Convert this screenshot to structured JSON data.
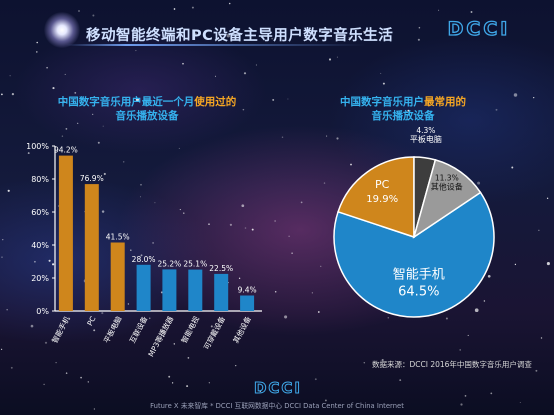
{
  "header": {
    "title": "移动智能终端和PC设备主导用户数字音乐生活",
    "logo_text": "DCCI"
  },
  "bar_panel": {
    "title_part1": "中国数字音乐用户最近一个月",
    "title_highlight": "使用过的",
    "title_part2": "音乐播放设备"
  },
  "pie_panel": {
    "title_part1": "中国数字音乐用户",
    "title_highlight": "最常用的",
    "title_part2": "音乐播放设备"
  },
  "footer": {
    "source": "数据来源：DCCI 2016年中国数字音乐用户调查",
    "logo_text": "DCCI",
    "credit": "Future X 未来智库 * DCCI 互联网数据中心 DCCI Data Center of China Internet"
  },
  "colors": {
    "bar_orange": "#cf861c",
    "bar_blue": "#1f86c9",
    "pie_smartphone": "#1f86c9",
    "pie_pc": "#cf861c",
    "pie_tablet": "#3d3d3d",
    "pie_other": "#9a9a9a",
    "title_blue": "#35b2ee",
    "highlight_orange": "#f5a623"
  },
  "chart_data": [
    {
      "type": "bar",
      "categories": [
        "智能手机",
        "PC",
        "平板电脑",
        "互联设备",
        "MP3等播放器",
        "智能电视",
        "可穿戴设备",
        "其他设备"
      ],
      "values": [
        94.2,
        76.9,
        41.5,
        28.0,
        25.2,
        25.1,
        22.5,
        9.4
      ],
      "value_labels": [
        "94.2%",
        "76.9%",
        "41.5%",
        "28.0%",
        "25.2%",
        "25.1%",
        "22.5%",
        "9.4%"
      ],
      "bar_colors": [
        "#cf861c",
        "#cf861c",
        "#cf861c",
        "#1f86c9",
        "#1f86c9",
        "#1f86c9",
        "#1f86c9",
        "#1f86c9"
      ],
      "yticks": [
        "0%",
        "20%",
        "40%",
        "60%",
        "80%",
        "100%"
      ],
      "ylim": [
        0,
        100
      ],
      "grid": false
    },
    {
      "type": "pie",
      "slices": [
        {
          "label": "智能手机",
          "value": 64.5,
          "value_label": "64.5%",
          "color": "#1f86c9"
        },
        {
          "label": "PC",
          "value": 19.9,
          "value_label": "19.9%",
          "color": "#cf861c"
        },
        {
          "label": "平板电脑",
          "value": 4.3,
          "value_label": "4.3%",
          "color": "#3d3d3d"
        },
        {
          "label": "其他设备",
          "value": 11.3,
          "value_label": "11.3%",
          "color": "#9a9a9a"
        }
      ]
    }
  ]
}
